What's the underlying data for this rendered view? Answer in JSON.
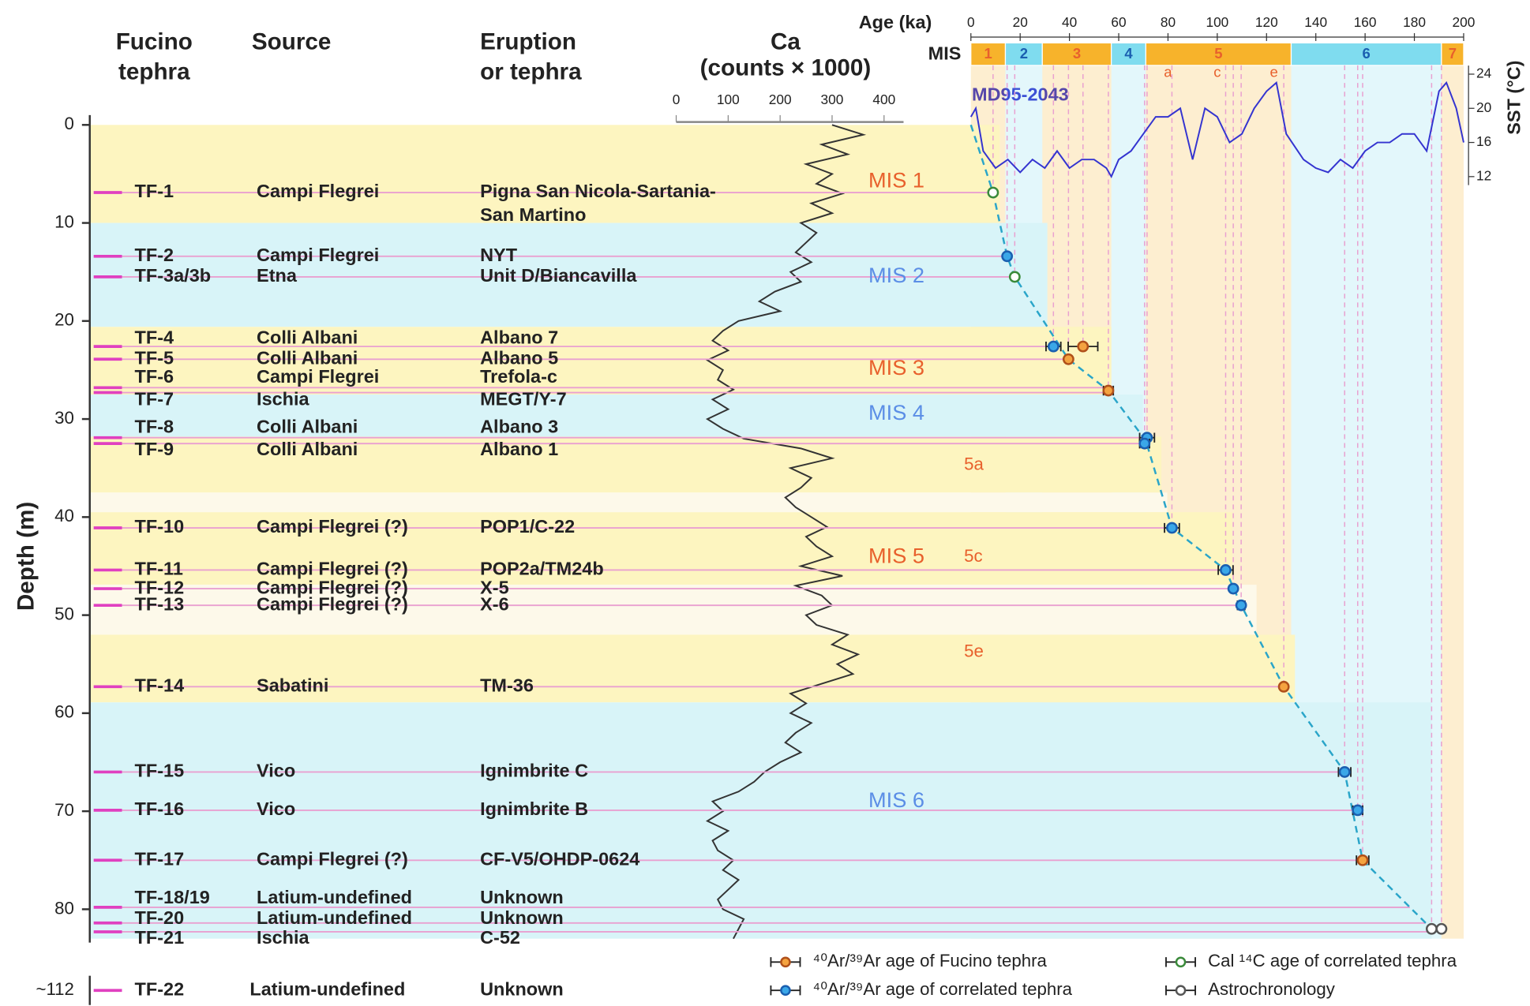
{
  "header": {
    "tephra": [
      "Fucino",
      "tephra"
    ],
    "source": "Source",
    "eruption": [
      "Eruption",
      "or tephra"
    ],
    "ca": [
      "Ca",
      "(counts  × 1000)"
    ]
  },
  "chart_data": {
    "type": "tephrostratigraphy",
    "y_label": "Depth (m)",
    "ylim": [
      0,
      83
    ],
    "yticks": [
      0,
      10,
      20,
      30,
      40,
      50,
      60,
      70,
      80
    ],
    "ca": {
      "xlim": [
        0,
        400
      ],
      "xticks": [
        0,
        100,
        200,
        300,
        400
      ],
      "color": "#333333",
      "depth": [
        0,
        1,
        2,
        3,
        4,
        5,
        6,
        7,
        8,
        9,
        10,
        11,
        12,
        13,
        14,
        15,
        16,
        17,
        18,
        19,
        20,
        21,
        22,
        23,
        24,
        25,
        26,
        27,
        28,
        29,
        30,
        31,
        32,
        33,
        34,
        35,
        36,
        37,
        38,
        39,
        40,
        41,
        42,
        43,
        44,
        45,
        46,
        47,
        48,
        49,
        50,
        51,
        52,
        53,
        54,
        55,
        56,
        57,
        58,
        59,
        60,
        61,
        62,
        63,
        64,
        65,
        66,
        67,
        68,
        69,
        70,
        71,
        72,
        73,
        74,
        75,
        76,
        77,
        78,
        79,
        80,
        81,
        82,
        83
      ],
      "values": [
        300,
        360,
        280,
        330,
        250,
        300,
        270,
        320,
        260,
        300,
        240,
        270,
        250,
        230,
        260,
        220,
        240,
        190,
        160,
        200,
        120,
        90,
        70,
        100,
        60,
        90,
        80,
        110,
        70,
        100,
        60,
        90,
        130,
        240,
        300,
        220,
        260,
        240,
        210,
        230,
        260,
        290,
        250,
        270,
        300,
        240,
        320,
        230,
        280,
        300,
        250,
        270,
        330,
        300,
        350,
        310,
        340,
        280,
        220,
        250,
        220,
        260,
        230,
        210,
        240,
        200,
        170,
        150,
        120,
        70,
        90,
        60,
        100,
        70,
        80,
        110,
        90,
        120,
        100,
        80,
        90,
        130,
        120,
        110
      ]
    },
    "age": {
      "label": "Age (ka)",
      "xlim": [
        0,
        200
      ],
      "xticks": [
        0,
        20,
        40,
        60,
        80,
        100,
        120,
        140,
        160,
        180,
        200
      ]
    },
    "mis": {
      "label": "MIS",
      "segments": [
        {
          "name": "1",
          "from": 0,
          "to": 14,
          "color": "#f7b32b"
        },
        {
          "name": "2",
          "from": 14,
          "to": 29,
          "color": "#7fdcef"
        },
        {
          "name": "3",
          "from": 29,
          "to": 57,
          "color": "#f7b32b"
        },
        {
          "name": "4",
          "from": 57,
          "to": 71,
          "color": "#7fdcef"
        },
        {
          "name": "5",
          "from": 71,
          "to": 130,
          "color": "#f7b32b"
        },
        {
          "name": "6",
          "from": 130,
          "to": 191,
          "color": "#7fdcef"
        },
        {
          "name": "7",
          "from": 191,
          "to": 200,
          "color": "#f7b32b"
        }
      ],
      "substages": [
        {
          "name": "a",
          "age": 80
        },
        {
          "name": "c",
          "age": 100
        },
        {
          "name": "e",
          "age": 123
        }
      ]
    },
    "sst": {
      "name": "MD95-2043",
      "label": "SST (°C)",
      "ylim": [
        11,
        25
      ],
      "yticks": [
        12,
        16,
        20,
        24
      ],
      "color": "#3434d0",
      "age": [
        0,
        2,
        5,
        10,
        15,
        20,
        25,
        30,
        35,
        40,
        45,
        50,
        55,
        57,
        60,
        65,
        70,
        75,
        80,
        85,
        90,
        95,
        100,
        105,
        110,
        115,
        120,
        124,
        128,
        135,
        140,
        145,
        150,
        155,
        160,
        165,
        170,
        175,
        180,
        185,
        190,
        193,
        197,
        200
      ],
      "values": [
        19,
        20,
        15,
        13,
        14,
        12.5,
        14,
        13,
        15,
        13,
        14,
        14,
        13,
        12,
        14,
        15,
        17,
        19,
        19,
        20,
        14,
        20,
        19,
        16,
        17,
        20,
        22,
        23,
        17,
        14,
        13,
        12.5,
        14,
        13,
        15,
        16,
        16,
        17,
        17,
        15,
        22,
        23,
        20,
        16
      ]
    },
    "bands": [
      {
        "from": 0,
        "to": 10,
        "color": "#fdf5c0"
      },
      {
        "from": 10,
        "to": 20.6,
        "color": "#d8f4f8"
      },
      {
        "from": 20.6,
        "to": 27.5,
        "color": "#fdf5c0"
      },
      {
        "from": 27.5,
        "to": 31.8,
        "color": "#d8f4f8"
      },
      {
        "from": 31.8,
        "to": 37.5,
        "color": "#fdf5c0"
      },
      {
        "from": 37.5,
        "to": 39.5,
        "color": "#fdf9ea"
      },
      {
        "from": 39.5,
        "to": 46.9,
        "color": "#fdf5c0"
      },
      {
        "from": 46.9,
        "to": 52,
        "color": "#fdf9ea"
      },
      {
        "from": 52,
        "to": 58.9,
        "color": "#fdf5c0"
      },
      {
        "from": 58.9,
        "to": 83,
        "color": "#d8f4f8"
      }
    ],
    "band_labels": [
      {
        "text": "MIS 1",
        "depth": 5.8,
        "color": "#e8602c"
      },
      {
        "text": "MIS 2",
        "depth": 15.5,
        "color": "#5b8ee6"
      },
      {
        "text": "MIS 3",
        "depth": 24.9,
        "color": "#e8602c"
      },
      {
        "text": "MIS 4",
        "depth": 29.5,
        "color": "#5b8ee6"
      },
      {
        "text": "5a",
        "depth": 34.7,
        "color": "#e8602c"
      },
      {
        "text": "MIS 5",
        "depth": 44.1,
        "color": "#e8602c"
      },
      {
        "text": "5c",
        "depth": 44.1,
        "color": "#e8602c"
      },
      {
        "text": "5e",
        "depth": 53.8,
        "color": "#e8602c"
      },
      {
        "text": "MIS 6",
        "depth": 69,
        "color": "#5b8ee6"
      }
    ],
    "tephra": [
      {
        "name": "TF-1",
        "source": "Campi Flegrei",
        "eruption": [
          "Pigna San Nicola-Sartania-",
          "San Martino"
        ],
        "depth": 6.9
      },
      {
        "name": "TF-2",
        "source": "Campi Flegrei",
        "eruption": "NYT",
        "depth": 13.4
      },
      {
        "name": "TF-3a/3b",
        "source": "Etna",
        "eruption": "Unit D/Biancavilla",
        "depth": 15.5
      },
      {
        "name": "TF-4",
        "source": "Colli Albani",
        "eruption": "Albano 7",
        "depth": 22.6
      },
      {
        "name": "TF-5",
        "source": "Colli Albani",
        "eruption": "Albano 5",
        "depth": 23.9
      },
      {
        "name": "TF-6",
        "source": "Campi Flegrei",
        "eruption": "Trefola-c",
        "depth": 26.8
      },
      {
        "name": "TF-7",
        "source": "Ischia",
        "eruption": "MEGT/Y-7",
        "depth": 27.3
      },
      {
        "name": "TF-8",
        "source": "Colli Albani",
        "eruption": "Albano 3",
        "depth": 31.9
      },
      {
        "name": "TF-9",
        "source": "Colli Albani",
        "eruption": "Albano 1",
        "depth": 32.5
      },
      {
        "name": "TF-10",
        "source": "Campi Flegrei (?)",
        "eruption": "POP1/C-22",
        "depth": 41.1
      },
      {
        "name": "TF-11",
        "source": "Campi Flegrei (?)",
        "eruption": "POP2a/TM24b",
        "depth": 45.4
      },
      {
        "name": "TF-12",
        "source": "Campi Flegrei (?)",
        "eruption": "X-5",
        "depth": 47.3
      },
      {
        "name": "TF-13",
        "source": "Campi Flegrei (?)",
        "eruption": "X-6",
        "depth": 49
      },
      {
        "name": "TF-14",
        "source": "Sabatini",
        "eruption": "TM-36",
        "depth": 57.3
      },
      {
        "name": "TF-15",
        "source": "Vico",
        "eruption": "Ignimbrite C",
        "depth": 66
      },
      {
        "name": "TF-16",
        "source": "Vico",
        "eruption": "Ignimbrite B",
        "depth": 69.9
      },
      {
        "name": "TF-17",
        "source": "Campi Flegrei (?)",
        "eruption": "CF-V5/OHDP-0624",
        "depth": 75
      },
      {
        "name": "TF-18/19",
        "source": "Latium-undefined",
        "eruption": "Unknown",
        "depth": 79.8
      },
      {
        "name": "TF-20",
        "source": "Latium-undefined",
        "eruption": "Unknown",
        "depth": 81.4
      },
      {
        "name": "TF-21",
        "source": "Ischia",
        "eruption": "C-52",
        "depth": 82.3
      },
      {
        "name": "TF-22",
        "source": "Latium-undefined",
        "eruption": "Unknown",
        "depth": 112,
        "depth_label": "~112"
      }
    ],
    "ages": [
      {
        "depth": 6.9,
        "age": 9,
        "error": null,
        "kind": "c14"
      },
      {
        "depth": 13.4,
        "age": 14.7,
        "error": 0.5,
        "kind": "correlated_ar"
      },
      {
        "depth": 15.5,
        "age": 17.8,
        "error": null,
        "kind": "c14"
      },
      {
        "depth": 22.6,
        "age": 33.5,
        "error": 3,
        "kind": "correlated_ar"
      },
      {
        "depth": 22.6,
        "age": 45.5,
        "error": 6,
        "kind": "fucino_ar"
      },
      {
        "depth": 23.9,
        "age": 39.6,
        "error": 1,
        "kind": "fucino_ar"
      },
      {
        "depth": 27.1,
        "age": 55.8,
        "error": 2,
        "kind": "fucino_ar"
      },
      {
        "depth": 31.9,
        "age": 71.5,
        "error": 3,
        "kind": "correlated_ar"
      },
      {
        "depth": 32.5,
        "age": 70.5,
        "error": 2,
        "kind": "correlated_ar"
      },
      {
        "depth": 41.1,
        "age": 81.6,
        "error": 3,
        "kind": "correlated_ar"
      },
      {
        "depth": 45.4,
        "age": 103.4,
        "error": 3,
        "kind": "correlated_ar"
      },
      {
        "depth": 47.3,
        "age": 106.5,
        "error": 1,
        "kind": "correlated_ar"
      },
      {
        "depth": 49,
        "age": 109.7,
        "error": 1.5,
        "kind": "correlated_ar"
      },
      {
        "depth": 57.3,
        "age": 127,
        "error": 0.5,
        "kind": "fucino_ar"
      },
      {
        "depth": 66,
        "age": 151.7,
        "error": 2.5,
        "kind": "correlated_ar"
      },
      {
        "depth": 69.9,
        "age": 157,
        "error": 2,
        "kind": "correlated_ar"
      },
      {
        "depth": 75,
        "age": 159,
        "error": 2.5,
        "kind": "fucino_ar"
      },
      {
        "depth": 82,
        "age": 187,
        "error": null,
        "kind": "astro"
      },
      {
        "depth": 82,
        "age": 191,
        "error": null,
        "kind": "astro"
      }
    ],
    "age_model": {
      "color": "#2aa5c9",
      "depth": [
        0,
        6.9,
        13.4,
        15.5,
        23.9,
        27.1,
        32.2,
        41.1,
        45.4,
        49,
        57.3,
        66,
        75,
        82
      ],
      "age": [
        0,
        9,
        14.7,
        17.8,
        39.6,
        55.8,
        71,
        81.6,
        103.4,
        109.7,
        127,
        151.7,
        159,
        187
      ]
    },
    "legend": [
      {
        "kind": "fucino_ar",
        "label": "⁴⁰Ar/³⁹Ar age of Fucino tephra",
        "fill": "#f4a340",
        "stroke": "#b0501a"
      },
      {
        "kind": "correlated_ar",
        "label": "⁴⁰Ar/³⁹Ar age of correlated tephra",
        "fill": "#3aa7e8",
        "stroke": "#1a5fb0"
      },
      {
        "kind": "c14",
        "label": "Cal ¹⁴C age of correlated tephra",
        "fill": "#ffffff",
        "stroke": "#3a8a3a"
      },
      {
        "kind": "astro",
        "label": "Astrochronology",
        "fill": "#ffffff",
        "stroke": "#555555"
      }
    ]
  }
}
